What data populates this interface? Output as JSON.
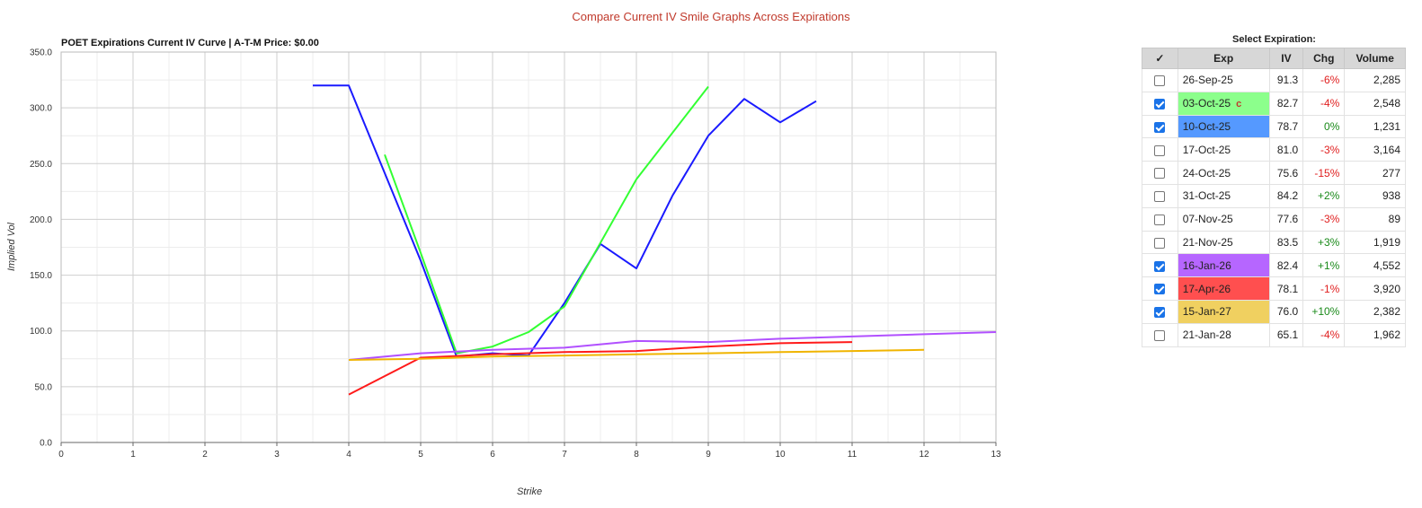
{
  "page_title": "Compare Current IV Smile Graphs Across Expirations",
  "chart_data": {
    "type": "line",
    "title": "POET Expirations Current IV Curve | A-T-M Price: $0.00",
    "xlabel": "Strike",
    "ylabel": "Implied Vol",
    "xlim": [
      0,
      13
    ],
    "ylim": [
      0,
      350
    ],
    "x_ticks": [
      "0",
      "1",
      "2",
      "3",
      "4",
      "5",
      "6",
      "7",
      "8",
      "9",
      "10",
      "11",
      "12",
      "13"
    ],
    "y_ticks": [
      "0.0",
      "50.0",
      "100.0",
      "150.0",
      "200.0",
      "250.0",
      "300.0",
      "350.0"
    ],
    "grid": true,
    "legend": "none",
    "series": [
      {
        "color": "#1a1aff",
        "points": [
          [
            3.5,
            320
          ],
          [
            4,
            320
          ],
          [
            5,
            163
          ],
          [
            5.5,
            77
          ],
          [
            6,
            80
          ],
          [
            6.5,
            78
          ],
          [
            7,
            125
          ],
          [
            7.5,
            178
          ],
          [
            8,
            156
          ],
          [
            8.5,
            221
          ],
          [
            9,
            275
          ],
          [
            9.5,
            308
          ],
          [
            10,
            287
          ],
          [
            10.5,
            306
          ]
        ]
      },
      {
        "color": "#33ff33",
        "points": [
          [
            4.5,
            258
          ],
          [
            5,
            170
          ],
          [
            5.5,
            80
          ],
          [
            6,
            86
          ],
          [
            6.5,
            99
          ],
          [
            7,
            122
          ],
          [
            8,
            236
          ],
          [
            9,
            319
          ]
        ]
      },
      {
        "color": "#b150ff",
        "points": [
          [
            4,
            74
          ],
          [
            5,
            80
          ],
          [
            6,
            83
          ],
          [
            7,
            85
          ],
          [
            8,
            91
          ],
          [
            9,
            90
          ],
          [
            10,
            93
          ],
          [
            11,
            95
          ],
          [
            12,
            97
          ],
          [
            13,
            99
          ]
        ]
      },
      {
        "color": "#ff1a1a",
        "points": [
          [
            4,
            43
          ],
          [
            5,
            76
          ],
          [
            6,
            79
          ],
          [
            7,
            81
          ],
          [
            8,
            82
          ],
          [
            9,
            86
          ],
          [
            10,
            89
          ],
          [
            11,
            90
          ]
        ]
      },
      {
        "color": "#f0b400",
        "points": [
          [
            4,
            74
          ],
          [
            5,
            75
          ],
          [
            6,
            77
          ],
          [
            7,
            78
          ],
          [
            8,
            79
          ],
          [
            9,
            80
          ],
          [
            10,
            81
          ],
          [
            11,
            82
          ],
          [
            12,
            83
          ]
        ]
      }
    ]
  },
  "panel": {
    "title": "Select Expiration:",
    "headers": {
      "check": "✓",
      "exp": "Exp",
      "iv": "IV",
      "chg": "Chg",
      "volume": "Volume"
    },
    "rows": [
      {
        "checked": false,
        "exp": "26-Sep-25",
        "marker": "",
        "iv": "91.3",
        "chg": "-6%",
        "chg_sign": "neg",
        "volume": "2,285",
        "color": ""
      },
      {
        "checked": true,
        "exp": "03-Oct-25",
        "marker": "c",
        "iv": "82.7",
        "chg": "-4%",
        "chg_sign": "neg",
        "volume": "2,548",
        "color": "#8cff8c"
      },
      {
        "checked": true,
        "exp": "10-Oct-25",
        "marker": "",
        "iv": "78.7",
        "chg": "0%",
        "chg_sign": "zero",
        "volume": "1,231",
        "color": "#5599ff"
      },
      {
        "checked": false,
        "exp": "17-Oct-25",
        "marker": "",
        "iv": "81.0",
        "chg": "-3%",
        "chg_sign": "neg",
        "volume": "3,164",
        "color": ""
      },
      {
        "checked": false,
        "exp": "24-Oct-25",
        "marker": "",
        "iv": "75.6",
        "chg": "-15%",
        "chg_sign": "neg",
        "volume": "277",
        "color": ""
      },
      {
        "checked": false,
        "exp": "31-Oct-25",
        "marker": "",
        "iv": "84.2",
        "chg": "+2%",
        "chg_sign": "pos",
        "volume": "938",
        "color": ""
      },
      {
        "checked": false,
        "exp": "07-Nov-25",
        "marker": "",
        "iv": "77.6",
        "chg": "-3%",
        "chg_sign": "neg",
        "volume": "89",
        "color": ""
      },
      {
        "checked": false,
        "exp": "21-Nov-25",
        "marker": "",
        "iv": "83.5",
        "chg": "+3%",
        "chg_sign": "pos",
        "volume": "1,919",
        "color": ""
      },
      {
        "checked": true,
        "exp": "16-Jan-26",
        "marker": "",
        "iv": "82.4",
        "chg": "+1%",
        "chg_sign": "pos",
        "volume": "4,552",
        "color": "#b666ff"
      },
      {
        "checked": true,
        "exp": "17-Apr-26",
        "marker": "",
        "iv": "78.1",
        "chg": "-1%",
        "chg_sign": "neg",
        "volume": "3,920",
        "color": "#ff4f4f"
      },
      {
        "checked": true,
        "exp": "15-Jan-27",
        "marker": "",
        "iv": "76.0",
        "chg": "+10%",
        "chg_sign": "pos",
        "volume": "2,382",
        "color": "#f0d060"
      },
      {
        "checked": false,
        "exp": "21-Jan-28",
        "marker": "",
        "iv": "65.1",
        "chg": "-4%",
        "chg_sign": "neg",
        "volume": "1,962",
        "color": ""
      }
    ]
  }
}
